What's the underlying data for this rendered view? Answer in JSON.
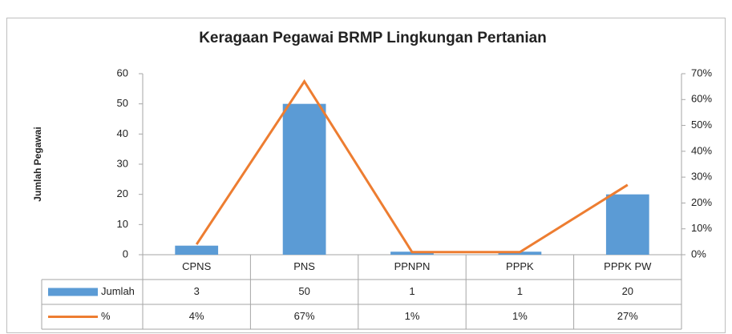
{
  "chart_data": {
    "type": "bar",
    "title": "Keragaan Pegawai BRMP Lingkungan Pertanian",
    "y_label": "Jumlah Pegawai",
    "categories": [
      "CPNS",
      "PNS",
      "PPNPN",
      "PPPK",
      "PPPK PW"
    ],
    "series": [
      {
        "name": "Jumlah",
        "type": "bar",
        "color": "#5b9bd5",
        "values": [
          3,
          50,
          1,
          1,
          20
        ]
      },
      {
        "name": "%",
        "type": "line",
        "axis": "y2",
        "color": "#ed7d31",
        "values": [
          4,
          67,
          1,
          1,
          27
        ],
        "value_labels": [
          "4%",
          "67%",
          "1%",
          "1%",
          "27%"
        ]
      }
    ],
    "ylim": [
      0,
      60
    ],
    "yticks": [
      0,
      10,
      20,
      30,
      40,
      50,
      60
    ],
    "y2lim": [
      0,
      70
    ],
    "y2ticks": [
      {
        "value": 0,
        "label": "0%"
      },
      {
        "value": 10,
        "label": "10%"
      },
      {
        "value": 20,
        "label": "20%"
      },
      {
        "value": 30,
        "label": "30%"
      },
      {
        "value": 40,
        "label": "40%"
      },
      {
        "value": 50,
        "label": "50%"
      },
      {
        "value": 60,
        "label": "60%"
      },
      {
        "value": 70,
        "label": "70%"
      }
    ],
    "grid": false,
    "data_table": true
  }
}
